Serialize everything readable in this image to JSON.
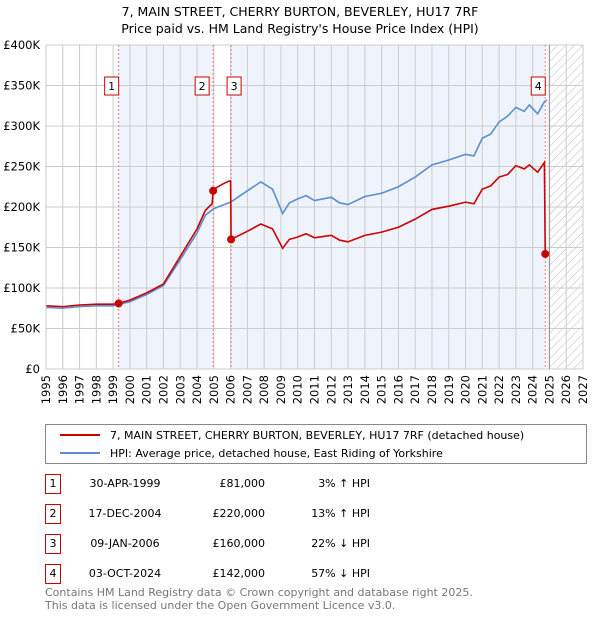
{
  "title": "7, MAIN STREET, CHERRY BURTON, BEVERLEY, HU17 7RF",
  "subtitle": "Price paid vs. HM Land Registry's House Price Index (HPI)",
  "chart_data": {
    "type": "line",
    "ylim": [
      0,
      400000
    ],
    "xlim": [
      1995,
      2027
    ],
    "yticks": [
      {
        "v": 0,
        "label": "£0"
      },
      {
        "v": 50000,
        "label": "£50K"
      },
      {
        "v": 100000,
        "label": "£100K"
      },
      {
        "v": 150000,
        "label": "£150K"
      },
      {
        "v": 200000,
        "label": "£200K"
      },
      {
        "v": 250000,
        "label": "£250K"
      },
      {
        "v": 300000,
        "label": "£300K"
      },
      {
        "v": 350000,
        "label": "£350K"
      },
      {
        "v": 400000,
        "label": "£400K"
      }
    ],
    "xticks": [
      "1995",
      "1996",
      "1997",
      "1998",
      "1999",
      "2000",
      "2001",
      "2002",
      "2003",
      "2004",
      "2005",
      "2006",
      "2007",
      "2008",
      "2009",
      "2010",
      "2011",
      "2012",
      "2013",
      "2014",
      "2015",
      "2016",
      "2017",
      "2018",
      "2019",
      "2020",
      "2021",
      "2022",
      "2023",
      "2024",
      "2025",
      "2026",
      "2027"
    ],
    "grid": true,
    "future_from": 2025.0,
    "series": [
      {
        "name": "7, MAIN STREET, CHERRY BURTON, BEVERLEY, HU17 7RF (detached house)",
        "color": "#cc0000",
        "x": [
          1995,
          1996,
          1997,
          1998,
          1999,
          1999.33,
          2000,
          2001,
          2002,
          2003,
          2004,
          2004.5,
          2004.9,
          2004.96,
          2005,
          2005.5,
          2005.9,
          2006.0,
          2006.03,
          2007,
          2007.8,
          2008.5,
          2009.1,
          2009.5,
          2010,
          2010.5,
          2011,
          2012,
          2012.5,
          2013,
          2014,
          2015,
          2016,
          2017,
          2018,
          2019,
          2020,
          2020.5,
          2021,
          2021.5,
          2022,
          2022.5,
          2023,
          2023.5,
          2023.8,
          2024.3,
          2024.7,
          2024.75
        ],
        "y": [
          78000,
          77000,
          79000,
          80000,
          80000,
          81000,
          85000,
          94000,
          105000,
          139000,
          173000,
          196000,
          204000,
          220000,
          222000,
          228000,
          232000,
          232000,
          160000,
          170000,
          179000,
          173000,
          149000,
          160000,
          163000,
          167000,
          162000,
          165000,
          159000,
          157000,
          165000,
          169000,
          175000,
          185000,
          197000,
          201000,
          206000,
          204000,
          222000,
          226000,
          237000,
          240000,
          251000,
          247000,
          252000,
          243000,
          255000,
          142000
        ]
      },
      {
        "name": "HPI: Average price, detached house, East Riding of Yorkshire",
        "color": "#5b8fd0",
        "x": [
          1995,
          1996,
          1997,
          1998,
          1999,
          2000,
          2001,
          2002,
          2003,
          2004,
          2004.5,
          2005,
          2006,
          2007,
          2007.8,
          2008.5,
          2009.1,
          2009.5,
          2010,
          2010.5,
          2011,
          2012,
          2012.5,
          2013,
          2014,
          2015,
          2016,
          2017,
          2018,
          2019,
          2020,
          2020.5,
          2021,
          2021.5,
          2022,
          2022.5,
          2023,
          2023.5,
          2023.8,
          2024.3,
          2024.7,
          2024.85
        ],
        "y": [
          76000,
          75000,
          77000,
          78000,
          78000,
          83000,
          92000,
          103000,
          135000,
          168000,
          190000,
          198000,
          206000,
          220000,
          231000,
          222000,
          192000,
          205000,
          210000,
          214000,
          208000,
          212000,
          205000,
          203000,
          213000,
          217000,
          225000,
          237000,
          252000,
          258000,
          265000,
          263000,
          285000,
          290000,
          305000,
          312000,
          323000,
          318000,
          326000,
          315000,
          330000,
          332000
        ]
      }
    ],
    "sales": [
      {
        "n": "1",
        "x": 1999.33,
        "y": 81000,
        "date": "30-APR-1999",
        "price": "£81,000",
        "hpi": "3% ↑ HPI"
      },
      {
        "n": "2",
        "x": 2004.96,
        "y": 220000,
        "date": "17-DEC-2004",
        "price": "£220,000",
        "hpi": "13% ↑ HPI"
      },
      {
        "n": "3",
        "x": 2006.03,
        "y": 160000,
        "date": "09-JAN-2006",
        "price": "£160,000",
        "hpi": "22% ↓ HPI"
      },
      {
        "n": "4",
        "x": 2024.75,
        "y": 142000,
        "date": "03-OCT-2024",
        "price": "£142,000",
        "hpi": "57% ↓ HPI"
      }
    ]
  },
  "footer1": "Contains HM Land Registry data © Crown copyright and database right 2025.",
  "footer2": "This data is licensed under the Open Government Licence v3.0."
}
